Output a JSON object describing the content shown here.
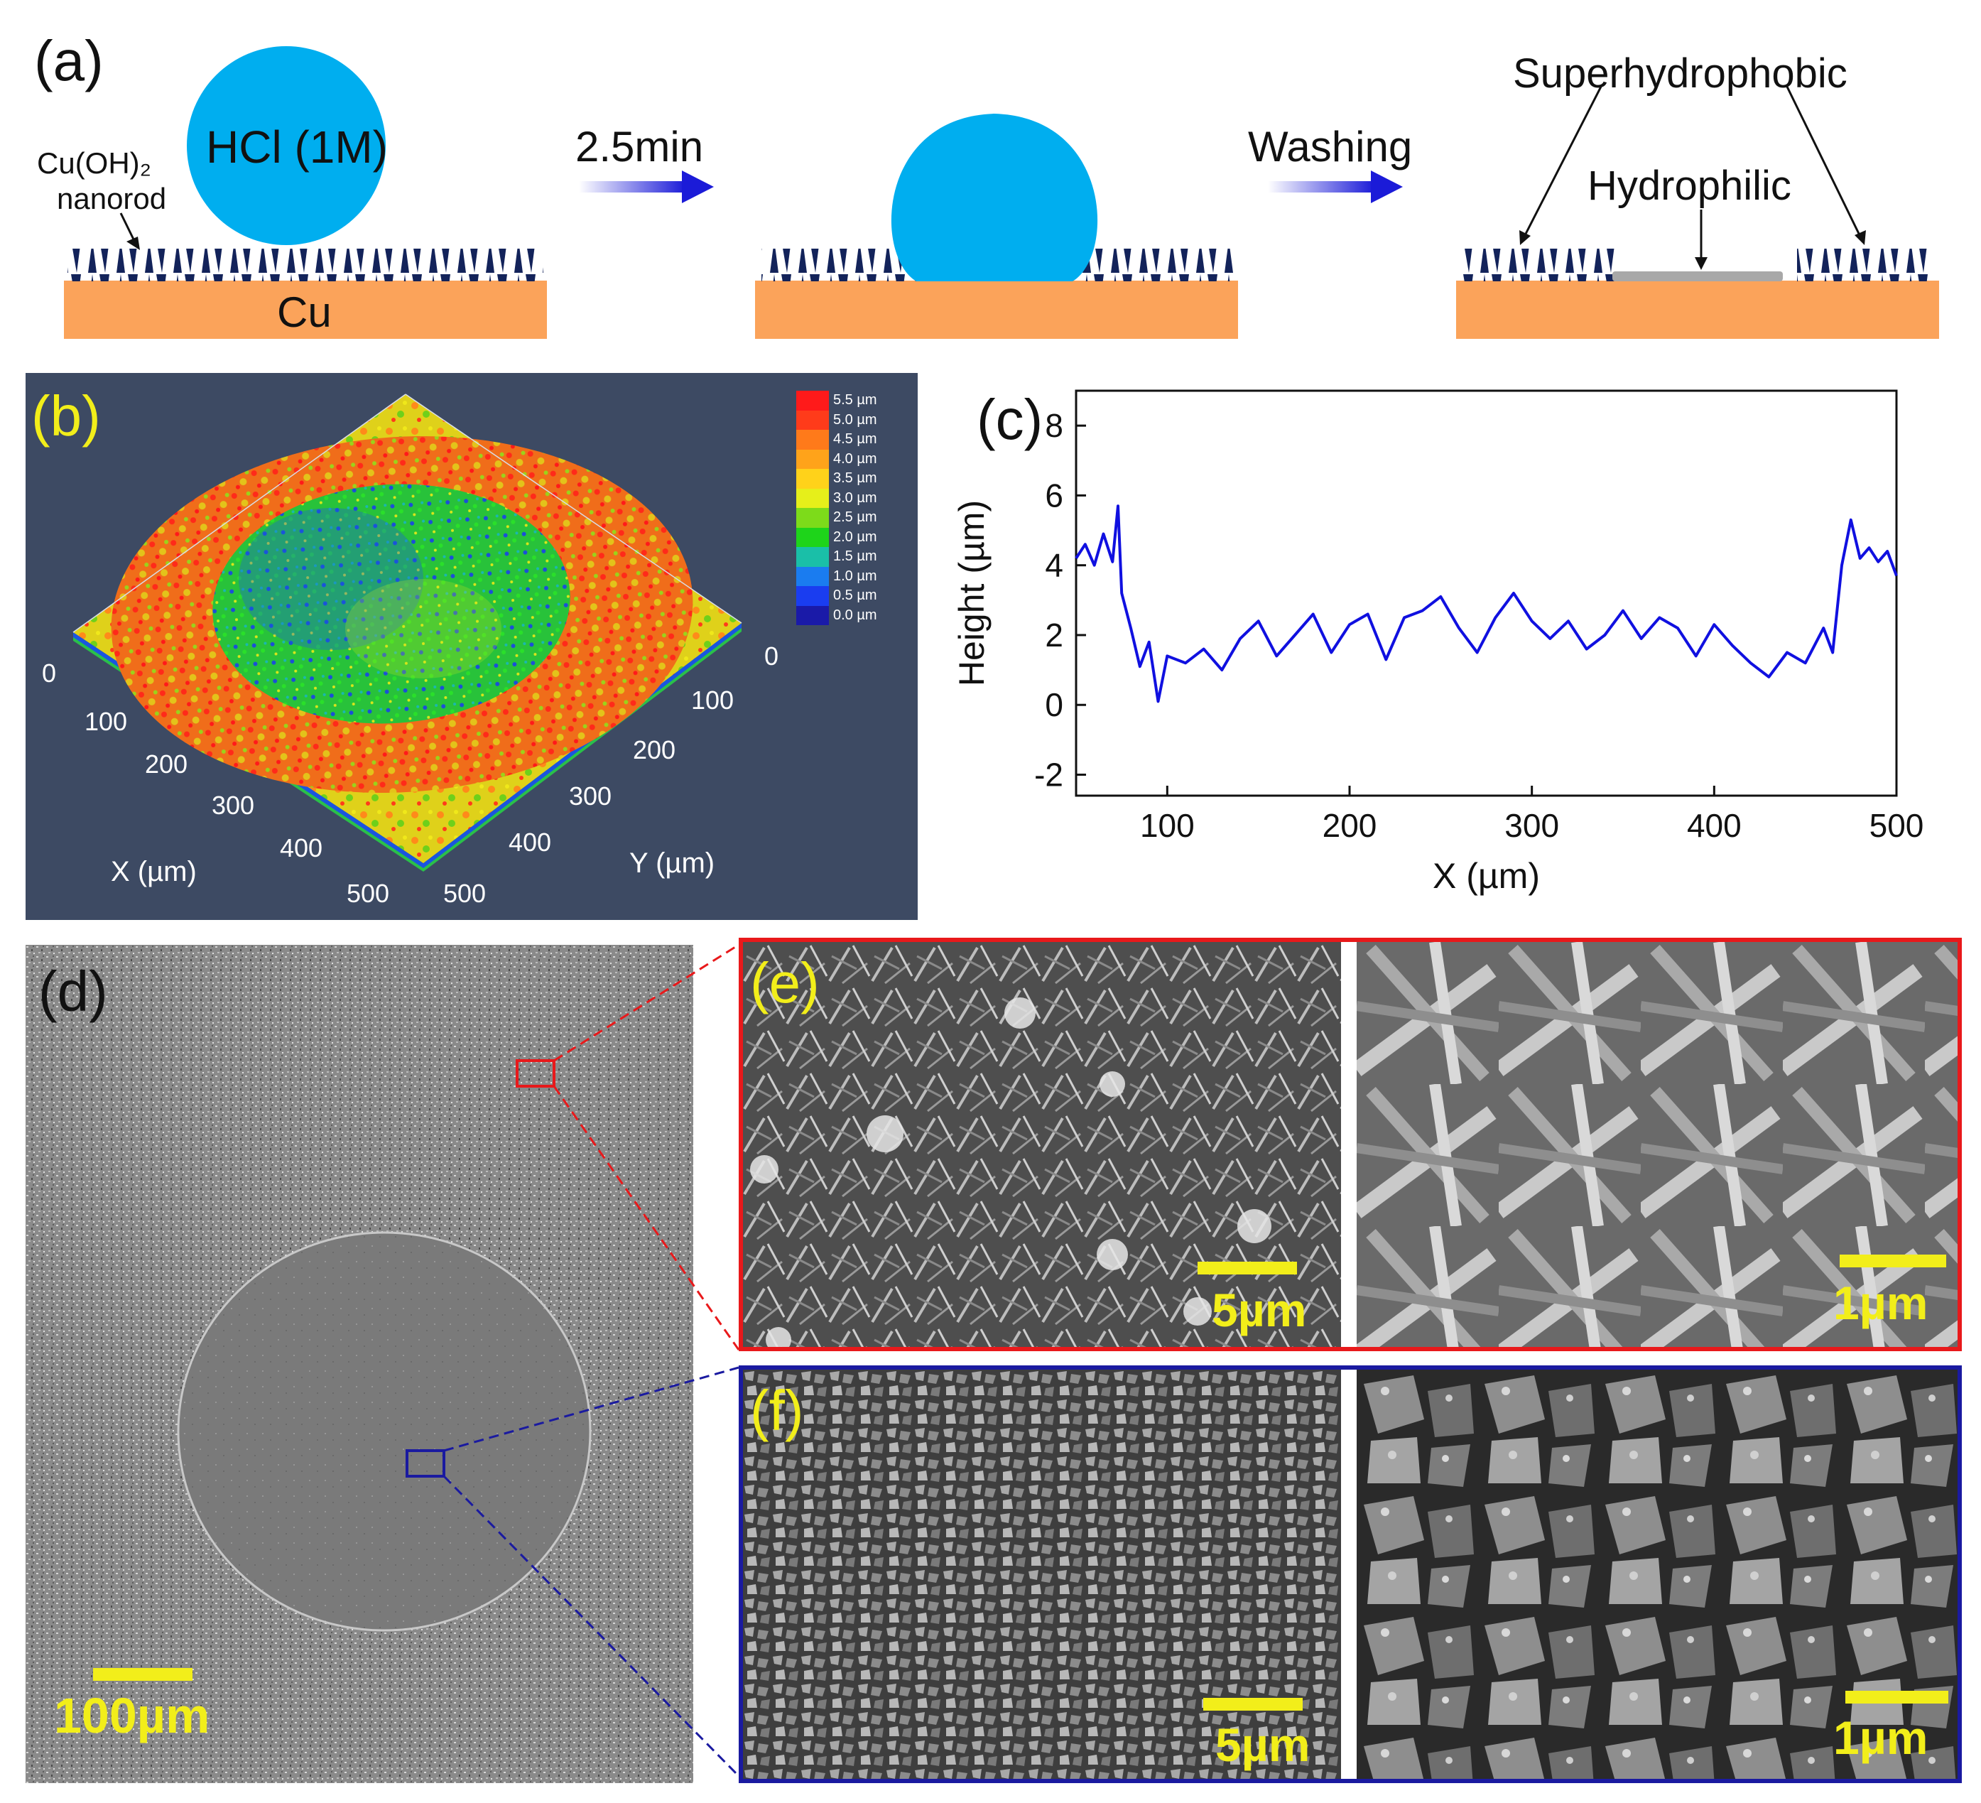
{
  "panel_a": {
    "label": "(a)",
    "drop_text": "HCl (1M)",
    "nanorod_label_1": "Cu(OH)₂",
    "nanorod_label_2": "nanorod",
    "substrate": "Cu",
    "step1": "2.5min",
    "step2": "Washing",
    "superhydrophobic": "Superhydrophobic",
    "hydrophilic": "Hydrophilic",
    "colors": {
      "drop": "#00aeef",
      "copper": "#fba35a",
      "rods": "#13235a",
      "arrow": "#1b1bd8",
      "hydrophilic_layer": "#a8a8a8"
    }
  },
  "panel_b": {
    "label": "(b)",
    "legend": [
      "5.5 µm",
      "5.0 µm",
      "4.5 µm",
      "4.0 µm",
      "3.5 µm",
      "3.0 µm",
      "2.5 µm",
      "2.0 µm",
      "1.5 µm",
      "1.0 µm",
      "0.5 µm",
      "0.0 µm"
    ],
    "legend_colors": [
      "#ff1a1a",
      "#ff3b1a",
      "#ff7a1a",
      "#ffa31a",
      "#ffd21a",
      "#e6ef1a",
      "#7ddb1a",
      "#1ed41a",
      "#1abfa8",
      "#1a7cf0",
      "#1a3df0",
      "#1a1aa8"
    ],
    "x_ticks": [
      "0",
      "100",
      "200",
      "300",
      "400",
      "500"
    ],
    "y_ticks": [
      "0",
      "100",
      "200",
      "300",
      "400",
      "500"
    ],
    "x_label": "X (µm)",
    "y_label": "Y (µm)",
    "background": "#3d4a63"
  },
  "panel_c": {
    "label": "(c)",
    "chart_data": {
      "type": "line",
      "xlabel": "X (µm)",
      "ylabel": "Height (µm)",
      "xlim": [
        50,
        500
      ],
      "ylim": [
        -2.6,
        9
      ],
      "x_ticks": [
        "100",
        "200",
        "300",
        "400",
        "500"
      ],
      "y_ticks": [
        "-2",
        "0",
        "2",
        "4",
        "6",
        "8"
      ],
      "series": [
        {
          "color": "#1010e0",
          "x": [
            50,
            55,
            60,
            65,
            70,
            73,
            75,
            80,
            85,
            90,
            95,
            100,
            110,
            120,
            130,
            140,
            150,
            160,
            170,
            180,
            190,
            200,
            210,
            220,
            230,
            240,
            250,
            260,
            270,
            280,
            290,
            300,
            310,
            320,
            330,
            340,
            350,
            360,
            370,
            380,
            390,
            400,
            410,
            420,
            430,
            440,
            450,
            460,
            465,
            470,
            475,
            480,
            485,
            490,
            495,
            500
          ],
          "y": [
            4.2,
            4.6,
            4.0,
            4.9,
            4.1,
            5.7,
            3.2,
            2.2,
            1.1,
            1.8,
            0.1,
            1.4,
            1.2,
            1.6,
            1.0,
            1.9,
            2.4,
            1.4,
            2.0,
            2.6,
            1.5,
            2.3,
            2.6,
            1.3,
            2.5,
            2.7,
            3.1,
            2.2,
            1.5,
            2.5,
            3.2,
            2.4,
            1.9,
            2.4,
            1.6,
            2.0,
            2.7,
            1.9,
            2.5,
            2.2,
            1.4,
            2.3,
            1.7,
            1.2,
            0.8,
            1.5,
            1.2,
            2.2,
            1.5,
            4.0,
            5.3,
            4.2,
            4.5,
            4.1,
            4.4,
            3.7
          ]
        }
      ]
    }
  },
  "panel_d": {
    "label": "(d)",
    "scale_bar": "100µm"
  },
  "panel_e": {
    "label": "(e)",
    "scale_left": "5µm",
    "scale_right": "1µm",
    "frame_color": "#e8191b"
  },
  "panel_f": {
    "label": "(f)",
    "scale_left": "5µm",
    "scale_right": "1µm",
    "frame_color": "#1a1aa0"
  }
}
